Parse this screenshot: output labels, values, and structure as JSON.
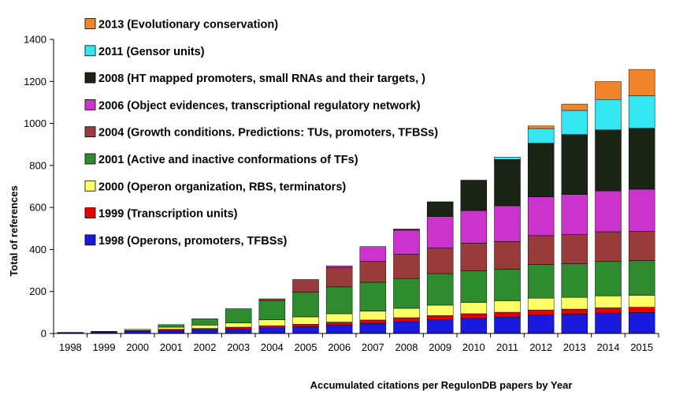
{
  "chart_data": {
    "type": "bar",
    "stacked": true,
    "title": "",
    "xlabel": "Accumulated citations per RegulonDB papers by Year",
    "ylabel": "Total of references",
    "ylim": [
      0,
      1400
    ],
    "yticks": [
      "0",
      "200",
      "400",
      "600",
      "800",
      "1000",
      "1200",
      "1400"
    ],
    "grid": false,
    "legend_position": "top-left, inside plot area",
    "categories": [
      "1998",
      "1999",
      "2000",
      "2001",
      "2002",
      "2003",
      "2004",
      "2005",
      "2006",
      "2007",
      "2008",
      "2009",
      "2010",
      "2011",
      "2012",
      "2013",
      "2014",
      "2015"
    ],
    "series": [
      {
        "name": "1998 (Operons, promoters, TFBSs)",
        "color": "#1a1adf",
        "values": [
          4,
          8,
          12,
          15,
          18,
          22,
          27,
          32,
          40,
          48,
          57,
          65,
          72,
          78,
          88,
          92,
          97,
          100
        ]
      },
      {
        "name": "1999 (Transcription units)",
        "color": "#e60000",
        "values": [
          1,
          2,
          3,
          5,
          6,
          8,
          10,
          12,
          14,
          16,
          18,
          20,
          22,
          23,
          24,
          24,
          25,
          25
        ]
      },
      {
        "name": "2000 (Operon organization, RBS, terminators)",
        "color": "#ffff66",
        "values": [
          0,
          0,
          5,
          10,
          16,
          20,
          28,
          35,
          40,
          42,
          45,
          50,
          54,
          55,
          56,
          56,
          57,
          57
        ]
      },
      {
        "name": "2001 (Active and inactive conformations of TFs)",
        "color": "#2e8b2e",
        "values": [
          0,
          0,
          0,
          12,
          30,
          68,
          92,
          118,
          128,
          138,
          142,
          150,
          150,
          150,
          160,
          160,
          165,
          165
        ]
      },
      {
        "name": "2004 (Growth conditions. Predictions: TUs, promoters, TFBSs)",
        "color": "#9a3b3b",
        "values": [
          0,
          0,
          0,
          0,
          0,
          0,
          8,
          60,
          92,
          100,
          115,
          122,
          132,
          132,
          138,
          140,
          140,
          140
        ]
      },
      {
        "name": "2006 (Object evidences, transcriptional regulatory network)",
        "color": "#cc33cc",
        "values": [
          0,
          0,
          0,
          0,
          0,
          0,
          0,
          0,
          8,
          70,
          115,
          150,
          155,
          170,
          185,
          190,
          195,
          200
        ]
      },
      {
        "name": "2008 (HT mapped promoters, small RNAs and their targets, )",
        "color": "#1a2414",
        "values": [
          0,
          0,
          0,
          0,
          0,
          0,
          0,
          0,
          0,
          0,
          5,
          70,
          145,
          220,
          255,
          285,
          290,
          290
        ]
      },
      {
        "name": "2011 (Gensor units)",
        "color": "#33e6f2",
        "values": [
          0,
          0,
          0,
          0,
          0,
          0,
          0,
          0,
          0,
          0,
          0,
          0,
          0,
          12,
          70,
          115,
          145,
          155
        ]
      },
      {
        "name": "2013 (Evolutionary conservation)",
        "color": "#f2852b",
        "values": [
          0,
          0,
          0,
          0,
          0,
          0,
          0,
          0,
          0,
          0,
          0,
          0,
          0,
          0,
          12,
          30,
          85,
          125
        ]
      }
    ]
  }
}
